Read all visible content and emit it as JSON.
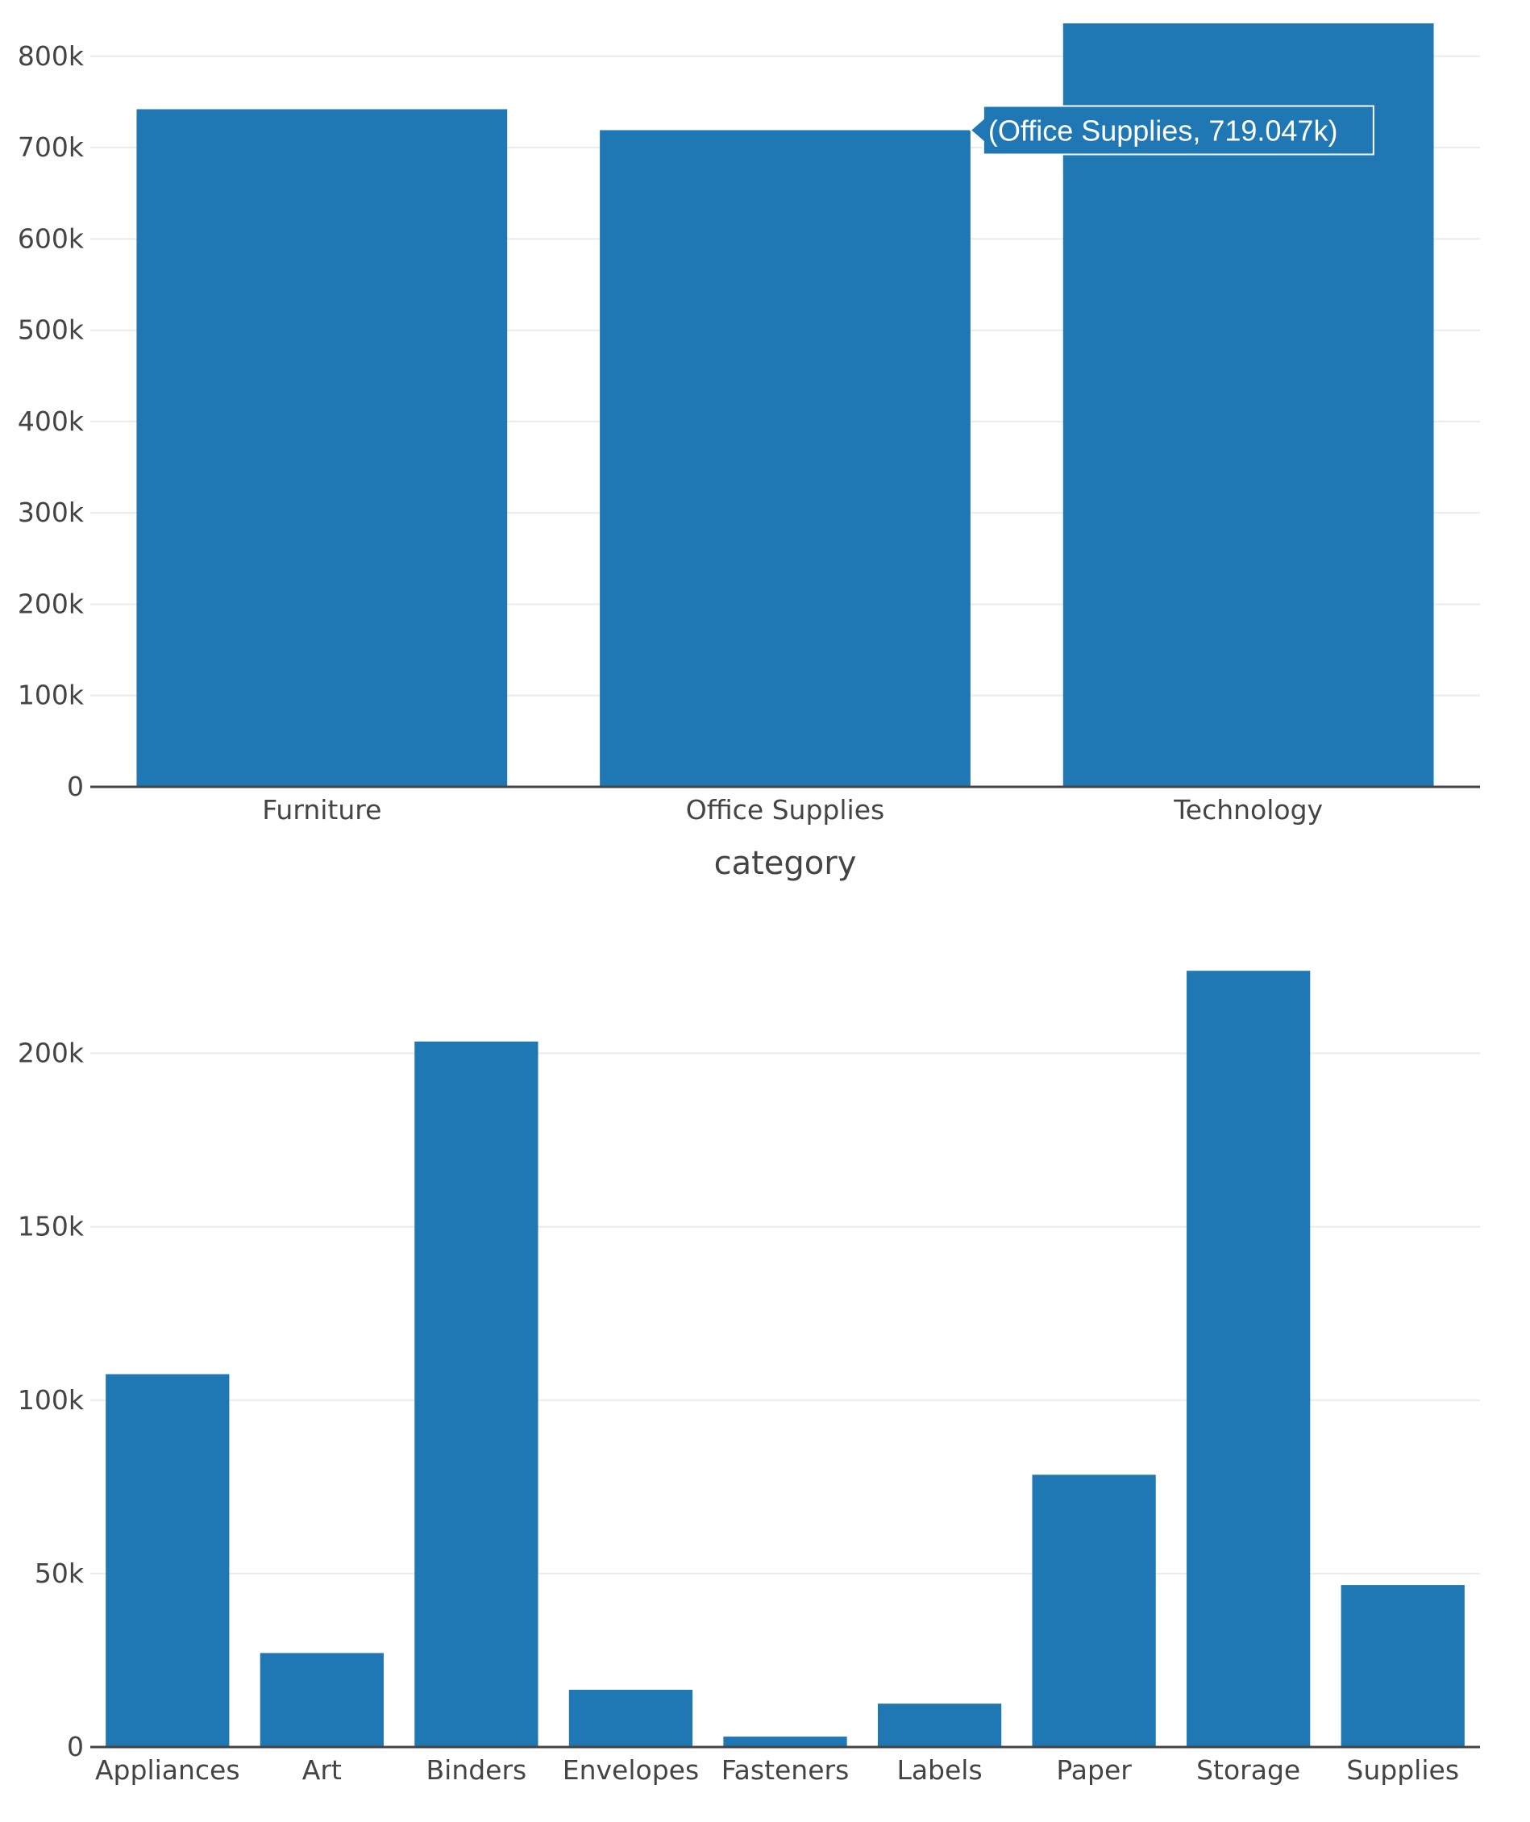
{
  "colors": {
    "bar": "#1f77b4",
    "grid": "#ebebeb",
    "axis": "#444444",
    "text": "#444444",
    "tooltip_bg": "#1f77b4",
    "tooltip_text": "#ffffff"
  },
  "chart_data": [
    {
      "type": "bar",
      "title": "",
      "xlabel": "category",
      "ylabel": "",
      "categories": [
        "Furniture",
        "Office Supplies",
        "Technology"
      ],
      "values": [
        742000,
        719047,
        836000
      ],
      "ylim": [
        0,
        836000
      ],
      "yticks": [
        0,
        100000,
        200000,
        300000,
        400000,
        500000,
        600000,
        700000,
        800000
      ],
      "ytick_labels": [
        "0",
        "100k",
        "200k",
        "300k",
        "400k",
        "500k",
        "600k",
        "700k",
        "800k"
      ],
      "grid": true,
      "hover": {
        "category": "Office Supplies",
        "label": "(Office Supplies, 719.047k)"
      }
    },
    {
      "type": "bar",
      "title": "",
      "xlabel": "",
      "ylabel": "",
      "categories": [
        "Appliances",
        "Art",
        "Binders",
        "Envelopes",
        "Fasteners",
        "Labels",
        "Paper",
        "Storage",
        "Supplies"
      ],
      "values": [
        107500,
        27100,
        203400,
        16500,
        3000,
        12500,
        78500,
        223800,
        46700
      ],
      "ylim": [
        0,
        225000
      ],
      "yticks": [
        0,
        50000,
        100000,
        150000,
        200000
      ],
      "ytick_labels": [
        "0",
        "50k",
        "100k",
        "150k",
        "200k"
      ],
      "grid": true
    }
  ]
}
